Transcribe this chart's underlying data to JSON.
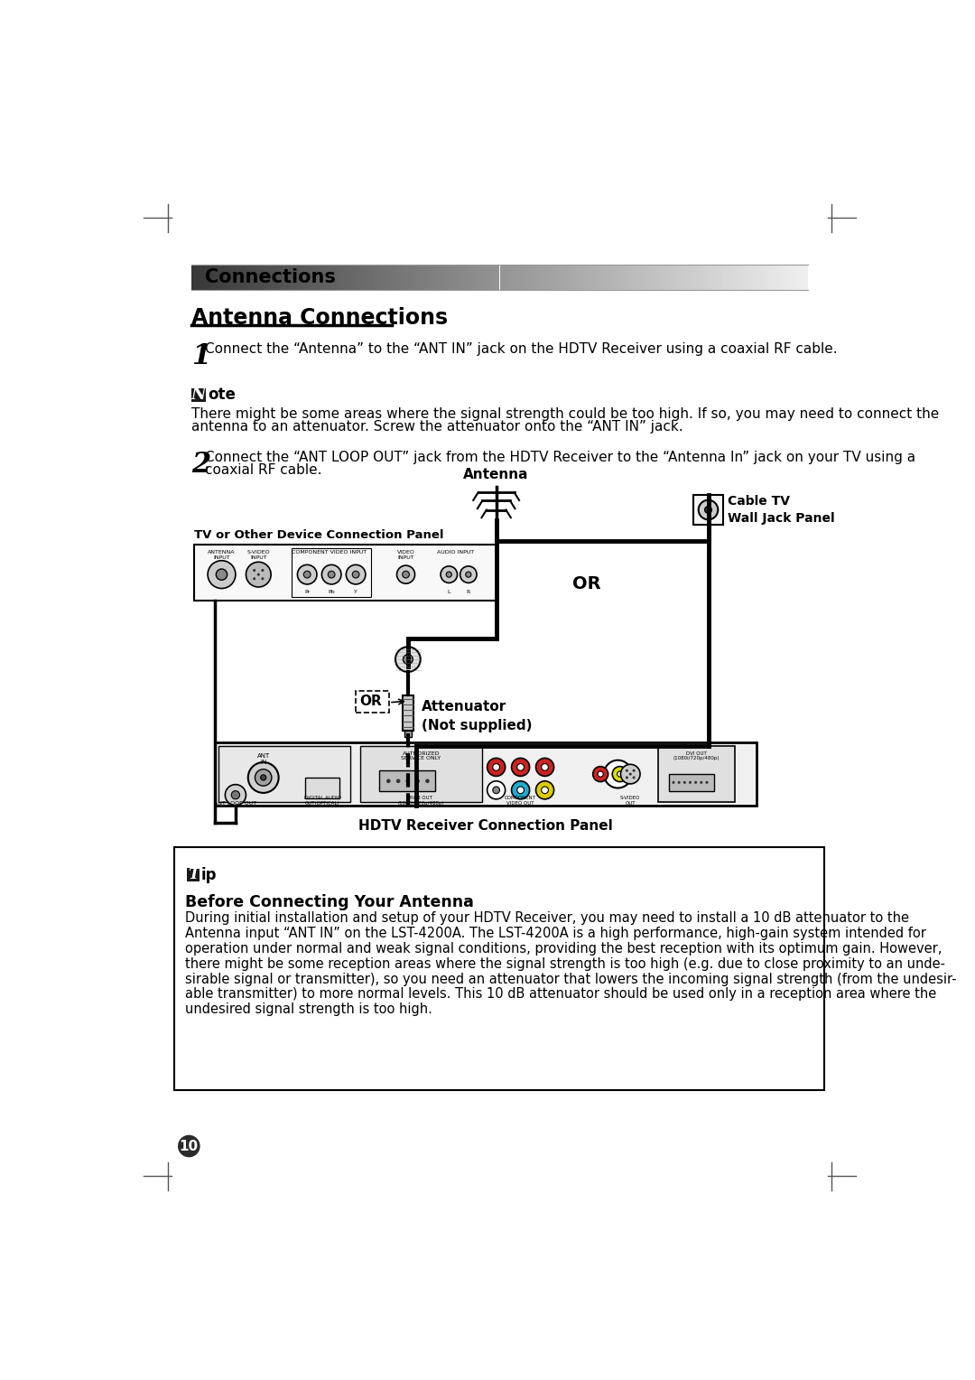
{
  "page_bg": "#ffffff",
  "header_text": "Connections",
  "section_title": "Antenna Connections",
  "step1_text": "Connect the “Antenna” to the “ANT IN” jack on the HDTV Receiver using a coaxial RF cable.",
  "note_body_line1": "There might be some areas where the signal strength could be too high. If so, you may need to connect the",
  "note_body_line2": "antenna to an attenuator. Screw the attenuator onto the “ANT IN” jack.",
  "step2_text_line1": "Connect the “ANT LOOP OUT” jack from the HDTV Receiver to the “Antenna In” jack on your TV using a",
  "step2_text_line2": "coaxial RF cable.",
  "diagram_label_antenna": "Antenna",
  "diagram_label_cable_tv": "Cable TV\nWall Jack Panel",
  "diagram_label_or1": "OR",
  "diagram_label_or2": "OR",
  "diagram_label_tv_panel": "TV or Other Device Connection Panel",
  "diagram_label_attenuator": "Attenuator\n(Not supplied)",
  "diagram_label_hdtv": "HDTV Receiver Connection Panel",
  "tip_icon_letter": "T",
  "tip_icon_suffix": "ip",
  "tip_title": "Before Connecting Your Antenna",
  "tip_body_line1": "During initial installation and setup of your HDTV Receiver, you may need to install a 10 dB attenuator to the",
  "tip_body_line2": "Antenna input “ANT IN” on the LST-4200A. The LST-4200A is a high performance, high-gain system intended for",
  "tip_body_line3": "operation under normal and weak signal conditions, providing the best reception with its optimum gain. However,",
  "tip_body_line4": "there might be some reception areas where the signal strength is too high (e.g. due to close proximity to an unde-",
  "tip_body_line5": "sirable signal or transmitter), so you need an attenuator that lowers the incoming signal strength (from the undesir-",
  "tip_body_line6": "able transmitter) to more normal levels. This 10 dB attenuator should be used only in a reception area where the",
  "tip_body_line7": "undesired signal strength is too high.",
  "page_number": "10"
}
